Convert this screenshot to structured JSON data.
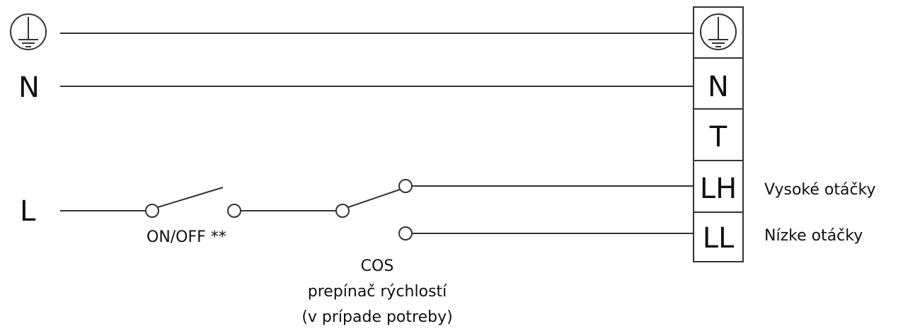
{
  "left_labels": {
    "n": "N",
    "l": "L"
  },
  "terminals": [
    "N",
    "T",
    "LH",
    "LL"
  ],
  "switch_label": "ON/OFF **",
  "cos_label": [
    "COS",
    "prepínač rýchlostí",
    "(v prípade potreby)"
  ],
  "speed_labels": {
    "high": "Vysoké otáčky",
    "low": "Nízke otáčky"
  }
}
